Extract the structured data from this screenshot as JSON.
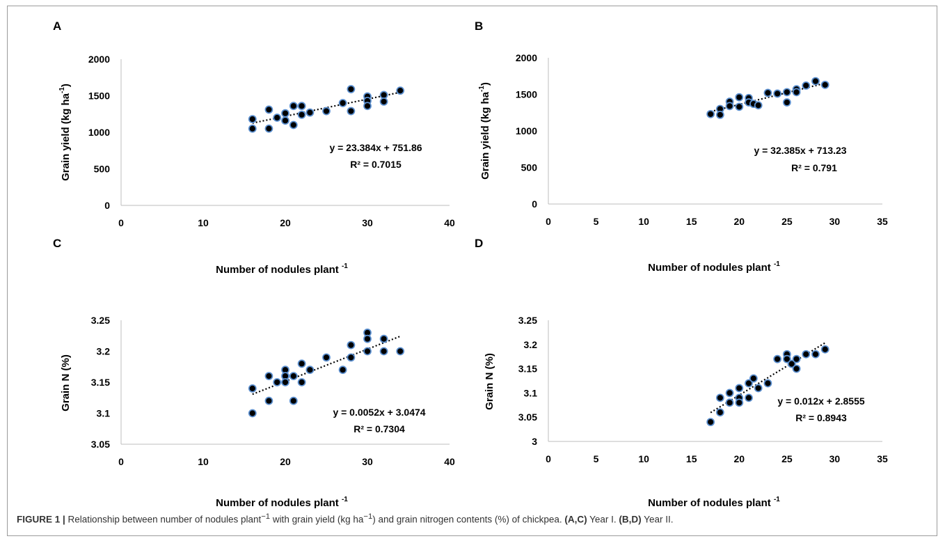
{
  "figure": {
    "caption": {
      "label": "FIGURE 1 |",
      "text_before": " Relationship between number of nodules plant",
      "sup1": "−1",
      "text_mid1": " with grain yield (kg ha",
      "sup2": "−1",
      "text_mid2": ") and grain nitrogen contents (%) of chickpea. ",
      "ac_label": "(A,C)",
      "ac_text": " Year I. ",
      "bd_label": "(B,D)",
      "bd_text": " Year II."
    }
  },
  "chart_data": [
    {
      "panel": "A",
      "type": "scatter",
      "xlabel": "Number of nodules plant",
      "xlabel_sup": "-1",
      "ylabel": "Grain yield (kg ha",
      "ylabel_sup": "-1",
      "ylabel_end": ")",
      "xlim": [
        0,
        40
      ],
      "xticks": [
        0,
        10,
        20,
        30,
        40
      ],
      "ylim": [
        0,
        2000
      ],
      "yticks": [
        0,
        500,
        1000,
        1500,
        2000
      ],
      "ytick_labels": [
        "0",
        "500",
        "1000",
        "1500",
        "2000"
      ],
      "equation": "y = 23.384x + 751.86",
      "r2_label": "R² = 0.7015",
      "trendline": {
        "slope": 23.384,
        "intercept": 751.86,
        "x_range": [
          16,
          34
        ]
      },
      "points": [
        [
          16,
          1180
        ],
        [
          16,
          1050
        ],
        [
          18,
          1310
        ],
        [
          18,
          1050
        ],
        [
          19,
          1200
        ],
        [
          20,
          1260
        ],
        [
          20,
          1160
        ],
        [
          21,
          1360
        ],
        [
          21,
          1100
        ],
        [
          22,
          1360
        ],
        [
          22,
          1240
        ],
        [
          23,
          1270
        ],
        [
          25,
          1290
        ],
        [
          27,
          1400
        ],
        [
          28,
          1590
        ],
        [
          28,
          1290
        ],
        [
          30,
          1490
        ],
        [
          30,
          1430
        ],
        [
          30,
          1360
        ],
        [
          32,
          1510
        ],
        [
          32,
          1420
        ],
        [
          34,
          1570
        ]
      ]
    },
    {
      "panel": "B",
      "type": "scatter",
      "xlabel": "Number of nodules plant",
      "xlabel_sup": "-1",
      "ylabel": "Grain yield (kg ha",
      "ylabel_sup": "-1",
      "ylabel_end": ")",
      "xlim": [
        0,
        35
      ],
      "xticks": [
        0,
        5,
        10,
        15,
        20,
        25,
        30,
        35
      ],
      "ylim": [
        0,
        2000
      ],
      "yticks": [
        0,
        500,
        1000,
        1500,
        2000
      ],
      "ytick_labels": [
        "0",
        "500",
        "1000",
        "1500",
        "2000"
      ],
      "equation": "y = 32.385x + 713.23",
      "r2_label": "R² = 0.791",
      "trendline": {
        "slope": 32.385,
        "intercept": 713.23,
        "x_range": [
          17,
          29
        ]
      },
      "points": [
        [
          17,
          1230
        ],
        [
          18,
          1300
        ],
        [
          18,
          1220
        ],
        [
          19,
          1400
        ],
        [
          19,
          1340
        ],
        [
          20,
          1460
        ],
        [
          20,
          1330
        ],
        [
          21,
          1450
        ],
        [
          21,
          1390
        ],
        [
          21.5,
          1370
        ],
        [
          22,
          1350
        ],
        [
          23,
          1520
        ],
        [
          24,
          1510
        ],
        [
          25,
          1530
        ],
        [
          25,
          1390
        ],
        [
          26,
          1570
        ],
        [
          26,
          1530
        ],
        [
          27,
          1620
        ],
        [
          28,
          1680
        ],
        [
          29,
          1630
        ]
      ]
    },
    {
      "panel": "C",
      "type": "scatter",
      "xlabel": "Number of nodules plant",
      "xlabel_sup": "-1",
      "ylabel": "Grain N (%)",
      "ylabel_sup": "",
      "ylabel_end": "",
      "xlim": [
        0,
        40
      ],
      "xticks": [
        0,
        10,
        20,
        30,
        40
      ],
      "ylim": [
        3.05,
        3.25
      ],
      "yticks": [
        3.05,
        3.1,
        3.15,
        3.2,
        3.25
      ],
      "ytick_labels": [
        "3.05",
        "3.1",
        "3.15",
        "3.2",
        "3.25"
      ],
      "equation": "y = 0.0052x + 3.0474",
      "r2_label": "R² = 0.7304",
      "trendline": {
        "slope": 0.0052,
        "intercept": 3.0474,
        "x_range": [
          16,
          34
        ]
      },
      "points": [
        [
          16,
          3.14
        ],
        [
          16,
          3.1
        ],
        [
          18,
          3.16
        ],
        [
          18,
          3.12
        ],
        [
          19,
          3.15
        ],
        [
          20,
          3.17
        ],
        [
          20,
          3.16
        ],
        [
          20,
          3.15
        ],
        [
          21,
          3.16
        ],
        [
          21,
          3.12
        ],
        [
          22,
          3.18
        ],
        [
          22,
          3.15
        ],
        [
          23,
          3.17
        ],
        [
          25,
          3.19
        ],
        [
          27,
          3.17
        ],
        [
          28,
          3.21
        ],
        [
          28,
          3.19
        ],
        [
          30,
          3.23
        ],
        [
          30,
          3.22
        ],
        [
          30,
          3.2
        ],
        [
          32,
          3.22
        ],
        [
          32,
          3.2
        ],
        [
          34,
          3.2
        ]
      ]
    },
    {
      "panel": "D",
      "type": "scatter",
      "xlabel": "Number of nodules plant",
      "xlabel_sup": "-1",
      "ylabel": "Grain N (%)",
      "ylabel_sup": "",
      "ylabel_end": "",
      "xlim": [
        0,
        35
      ],
      "xticks": [
        0,
        5,
        10,
        15,
        20,
        25,
        30,
        35
      ],
      "ylim": [
        3.0,
        3.25
      ],
      "yticks": [
        3.0,
        3.05,
        3.1,
        3.15,
        3.2,
        3.25
      ],
      "ytick_labels": [
        "3",
        "3.05",
        "3.1",
        "3.15",
        "3.2",
        "3.25"
      ],
      "equation": "y = 0.012x + 2.8555",
      "r2_label": "R² = 0.8943",
      "trendline": {
        "slope": 0.012,
        "intercept": 2.8555,
        "x_range": [
          17,
          29
        ]
      },
      "points": [
        [
          17,
          3.04
        ],
        [
          18,
          3.09
        ],
        [
          18,
          3.06
        ],
        [
          19,
          3.1
        ],
        [
          19,
          3.08
        ],
        [
          20,
          3.11
        ],
        [
          20,
          3.09
        ],
        [
          20,
          3.08
        ],
        [
          21,
          3.12
        ],
        [
          21,
          3.09
        ],
        [
          21.5,
          3.13
        ],
        [
          22,
          3.11
        ],
        [
          23,
          3.12
        ],
        [
          24,
          3.17
        ],
        [
          25,
          3.18
        ],
        [
          25,
          3.17
        ],
        [
          25.5,
          3.16
        ],
        [
          26,
          3.17
        ],
        [
          26,
          3.15
        ],
        [
          27,
          3.18
        ],
        [
          28,
          3.18
        ],
        [
          29,
          3.19
        ]
      ]
    }
  ]
}
